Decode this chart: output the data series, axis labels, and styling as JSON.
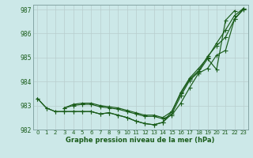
{
  "xlabel": "Graphe pression niveau de la mer (hPa)",
  "bg_color": "#cce8e8",
  "grid_color": "#b8cece",
  "line_color": "#1a5c1a",
  "xmin": 0,
  "xmax": 23,
  "ymin": 982,
  "ymax": 987.2,
  "yticks": [
    982,
    983,
    984,
    985,
    986,
    987
  ],
  "xticks": [
    0,
    1,
    2,
    3,
    4,
    5,
    6,
    7,
    8,
    9,
    10,
    11,
    12,
    13,
    14,
    15,
    16,
    17,
    18,
    19,
    20,
    21,
    22,
    23
  ],
  "lines": [
    [
      983.3,
      982.9,
      982.75,
      982.75,
      982.75,
      982.75,
      982.75,
      982.65,
      982.7,
      982.6,
      982.5,
      982.35,
      982.25,
      982.2,
      982.3,
      982.65,
      983.4,
      984.05,
      984.4,
      984.95,
      984.5,
      986.55,
      986.95,
      null
    ],
    [
      983.3,
      982.9,
      982.75,
      982.75,
      982.75,
      982.75,
      982.75,
      982.65,
      982.7,
      982.6,
      982.5,
      982.35,
      982.25,
      982.2,
      982.3,
      982.75,
      983.5,
      984.1,
      984.45,
      985.05,
      985.5,
      985.85,
      986.6,
      987.0
    ],
    [
      null,
      null,
      null,
      982.9,
      983.0,
      983.05,
      983.05,
      982.95,
      982.9,
      982.85,
      982.75,
      982.65,
      982.55,
      982.55,
      982.45,
      982.6,
      983.1,
      983.75,
      984.35,
      984.55,
      985.1,
      985.3,
      986.6,
      987.05
    ],
    [
      null,
      null,
      null,
      982.9,
      983.05,
      983.1,
      983.1,
      983.0,
      982.95,
      982.9,
      982.8,
      982.7,
      982.6,
      982.6,
      982.5,
      982.75,
      983.55,
      984.15,
      984.55,
      985.0,
      985.6,
      986.15,
      986.75,
      987.05
    ]
  ],
  "xlabel_fontsize": 6.0,
  "tick_fontsize": 5.0,
  "ytick_fontsize": 5.5,
  "linewidth": 0.85,
  "markersize": 1.8
}
